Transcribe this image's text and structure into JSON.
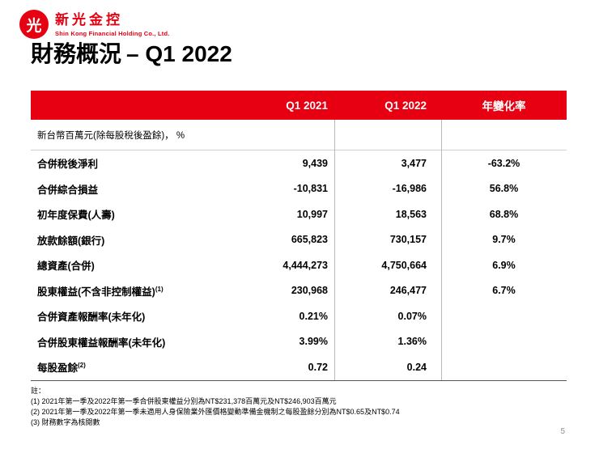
{
  "colors": {
    "brand_red": "#e60012"
  },
  "logo": {
    "symbol": "光",
    "company_zh": "新光金控",
    "company_en": "Shin Kong Financial Holding Co., Ltd."
  },
  "title": {
    "zh": "財務概況",
    "en": "– Q1 2022"
  },
  "table": {
    "header": {
      "col1": "Q1 2021",
      "col2": "Q1 2022",
      "col3": "年變化率"
    },
    "units": "新台幣百萬元(除每股稅後盈餘)， %",
    "rows": [
      {
        "label": "合併稅後淨利",
        "sup": "",
        "q1_2021": "9,439",
        "q1_2022": "3,477",
        "yoy": "-63.2%"
      },
      {
        "label": "合併綜合損益",
        "sup": "",
        "q1_2021": "-10,831",
        "q1_2022": "-16,986",
        "yoy": "56.8%"
      },
      {
        "label": "初年度保費(人壽)",
        "sup": "",
        "q1_2021": "10,997",
        "q1_2022": "18,563",
        "yoy": "68.8%"
      },
      {
        "label": "放款餘額(銀行)",
        "sup": "",
        "q1_2021": "665,823",
        "q1_2022": "730,157",
        "yoy": "9.7%"
      },
      {
        "label": "總資產(合併)",
        "sup": "",
        "q1_2021": "4,444,273",
        "q1_2022": "4,750,664",
        "yoy": "6.9%"
      },
      {
        "label": "股東權益(不含非控制權益)",
        "sup": "(1)",
        "q1_2021": "230,968",
        "q1_2022": "246,477",
        "yoy": "6.7%"
      },
      {
        "label": "合併資產報酬率(未年化)",
        "sup": "",
        "q1_2021": "0.21%",
        "q1_2022": "0.07%",
        "yoy": ""
      },
      {
        "label": "合併股東權益報酬率(未年化)",
        "sup": "",
        "q1_2021": "3.99%",
        "q1_2022": "1.36%",
        "yoy": ""
      },
      {
        "label": "每股盈餘",
        "sup": "(2)",
        "q1_2021": "0.72",
        "q1_2022": "0.24",
        "yoy": ""
      }
    ]
  },
  "notes": {
    "heading": "註：",
    "items": [
      "(1) 2021年第一季及2022年第一季合併股東權益分別為NT$231,378百萬元及NT$246,903百萬元",
      "(2) 2021年第一季及2022年第一季未適用人身保險業外匯價格變動準備金機制之每股盈餘分別為NT$0.65及NT$0.74",
      "(3) 財務數字為核閱數"
    ]
  },
  "page_number": "5"
}
